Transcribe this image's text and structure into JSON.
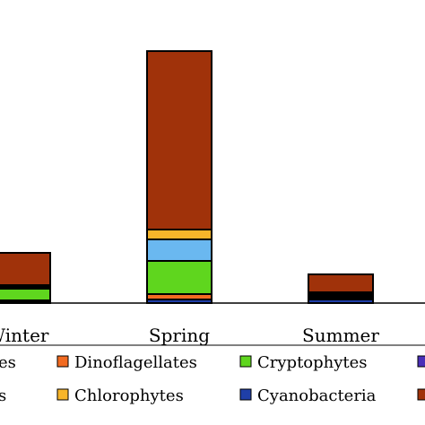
{
  "chart_data": {
    "type": "bar",
    "stacked": true,
    "categories": [
      "Winter",
      "Spring",
      "Summer"
    ],
    "y_range": [
      0,
      285
    ],
    "grid": false,
    "legend_placement": "bottom",
    "series": [
      {
        "name": "Cyanobacteria",
        "color": "#1f3fa8",
        "values": [
          1,
          4,
          4
        ]
      },
      {
        "name": "Dinoflagellates",
        "color": "#f26b21",
        "values": [
          2,
          6,
          2
        ]
      },
      {
        "name": "Cryptophytes",
        "color": "#5fd61e",
        "values": [
          13,
          37,
          2
        ]
      },
      {
        "name": "",
        "color": "#6ab8f0",
        "values": [
          2,
          24,
          2
        ]
      },
      {
        "name": "Chlorophytes",
        "color": "#f7b52a",
        "values": [
          2,
          11,
          2
        ]
      },
      {
        "name": "",
        "color": "#a0320a",
        "values": [
          36,
          199,
          20
        ]
      }
    ]
  },
  "legend": {
    "row1": [
      "es",
      "Dinoflagellates",
      "Cryptophytes",
      ""
    ],
    "row2": [
      "s",
      "Chlorophytes",
      "Cyanobacteria",
      ""
    ]
  }
}
